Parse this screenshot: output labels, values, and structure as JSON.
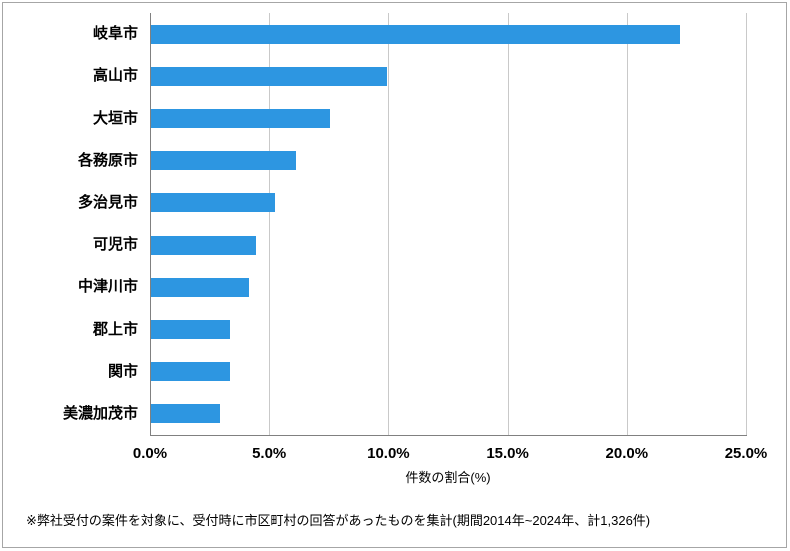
{
  "chart_data": {
    "type": "bar",
    "orientation": "horizontal",
    "title": "",
    "categories": [
      "岐阜市",
      "高山市",
      "大垣市",
      "各務原市",
      "多治見市",
      "可児市",
      "中津川市",
      "郡上市",
      "関市",
      "美濃加茂市"
    ],
    "values": [
      22.2,
      9.9,
      7.5,
      6.1,
      5.2,
      4.4,
      4.1,
      3.3,
      3.3,
      2.9
    ],
    "value_unit": "%",
    "xlabel": "件数の割合(%)",
    "xlim": [
      0,
      25
    ],
    "xtick_values": [
      0,
      5,
      10,
      15,
      20,
      25
    ],
    "xticks": [
      "0.0%",
      "5.0%",
      "10.0%",
      "15.0%",
      "20.0%",
      "25.0%"
    ],
    "grid": true,
    "legend": false,
    "bar_color": "#2d96e1"
  },
  "footnote": "※弊社受付の案件を対象に、受付時に市区町村の回答があったものを集計(期間2014年~2024年、計1,326件)",
  "colors": {
    "bar": "#2d96e1",
    "gridline": "#c9c9c9",
    "axis_line": "#808080",
    "text": "#000000",
    "frame_border": "#a6a6a6",
    "background": "#ffffff"
  }
}
